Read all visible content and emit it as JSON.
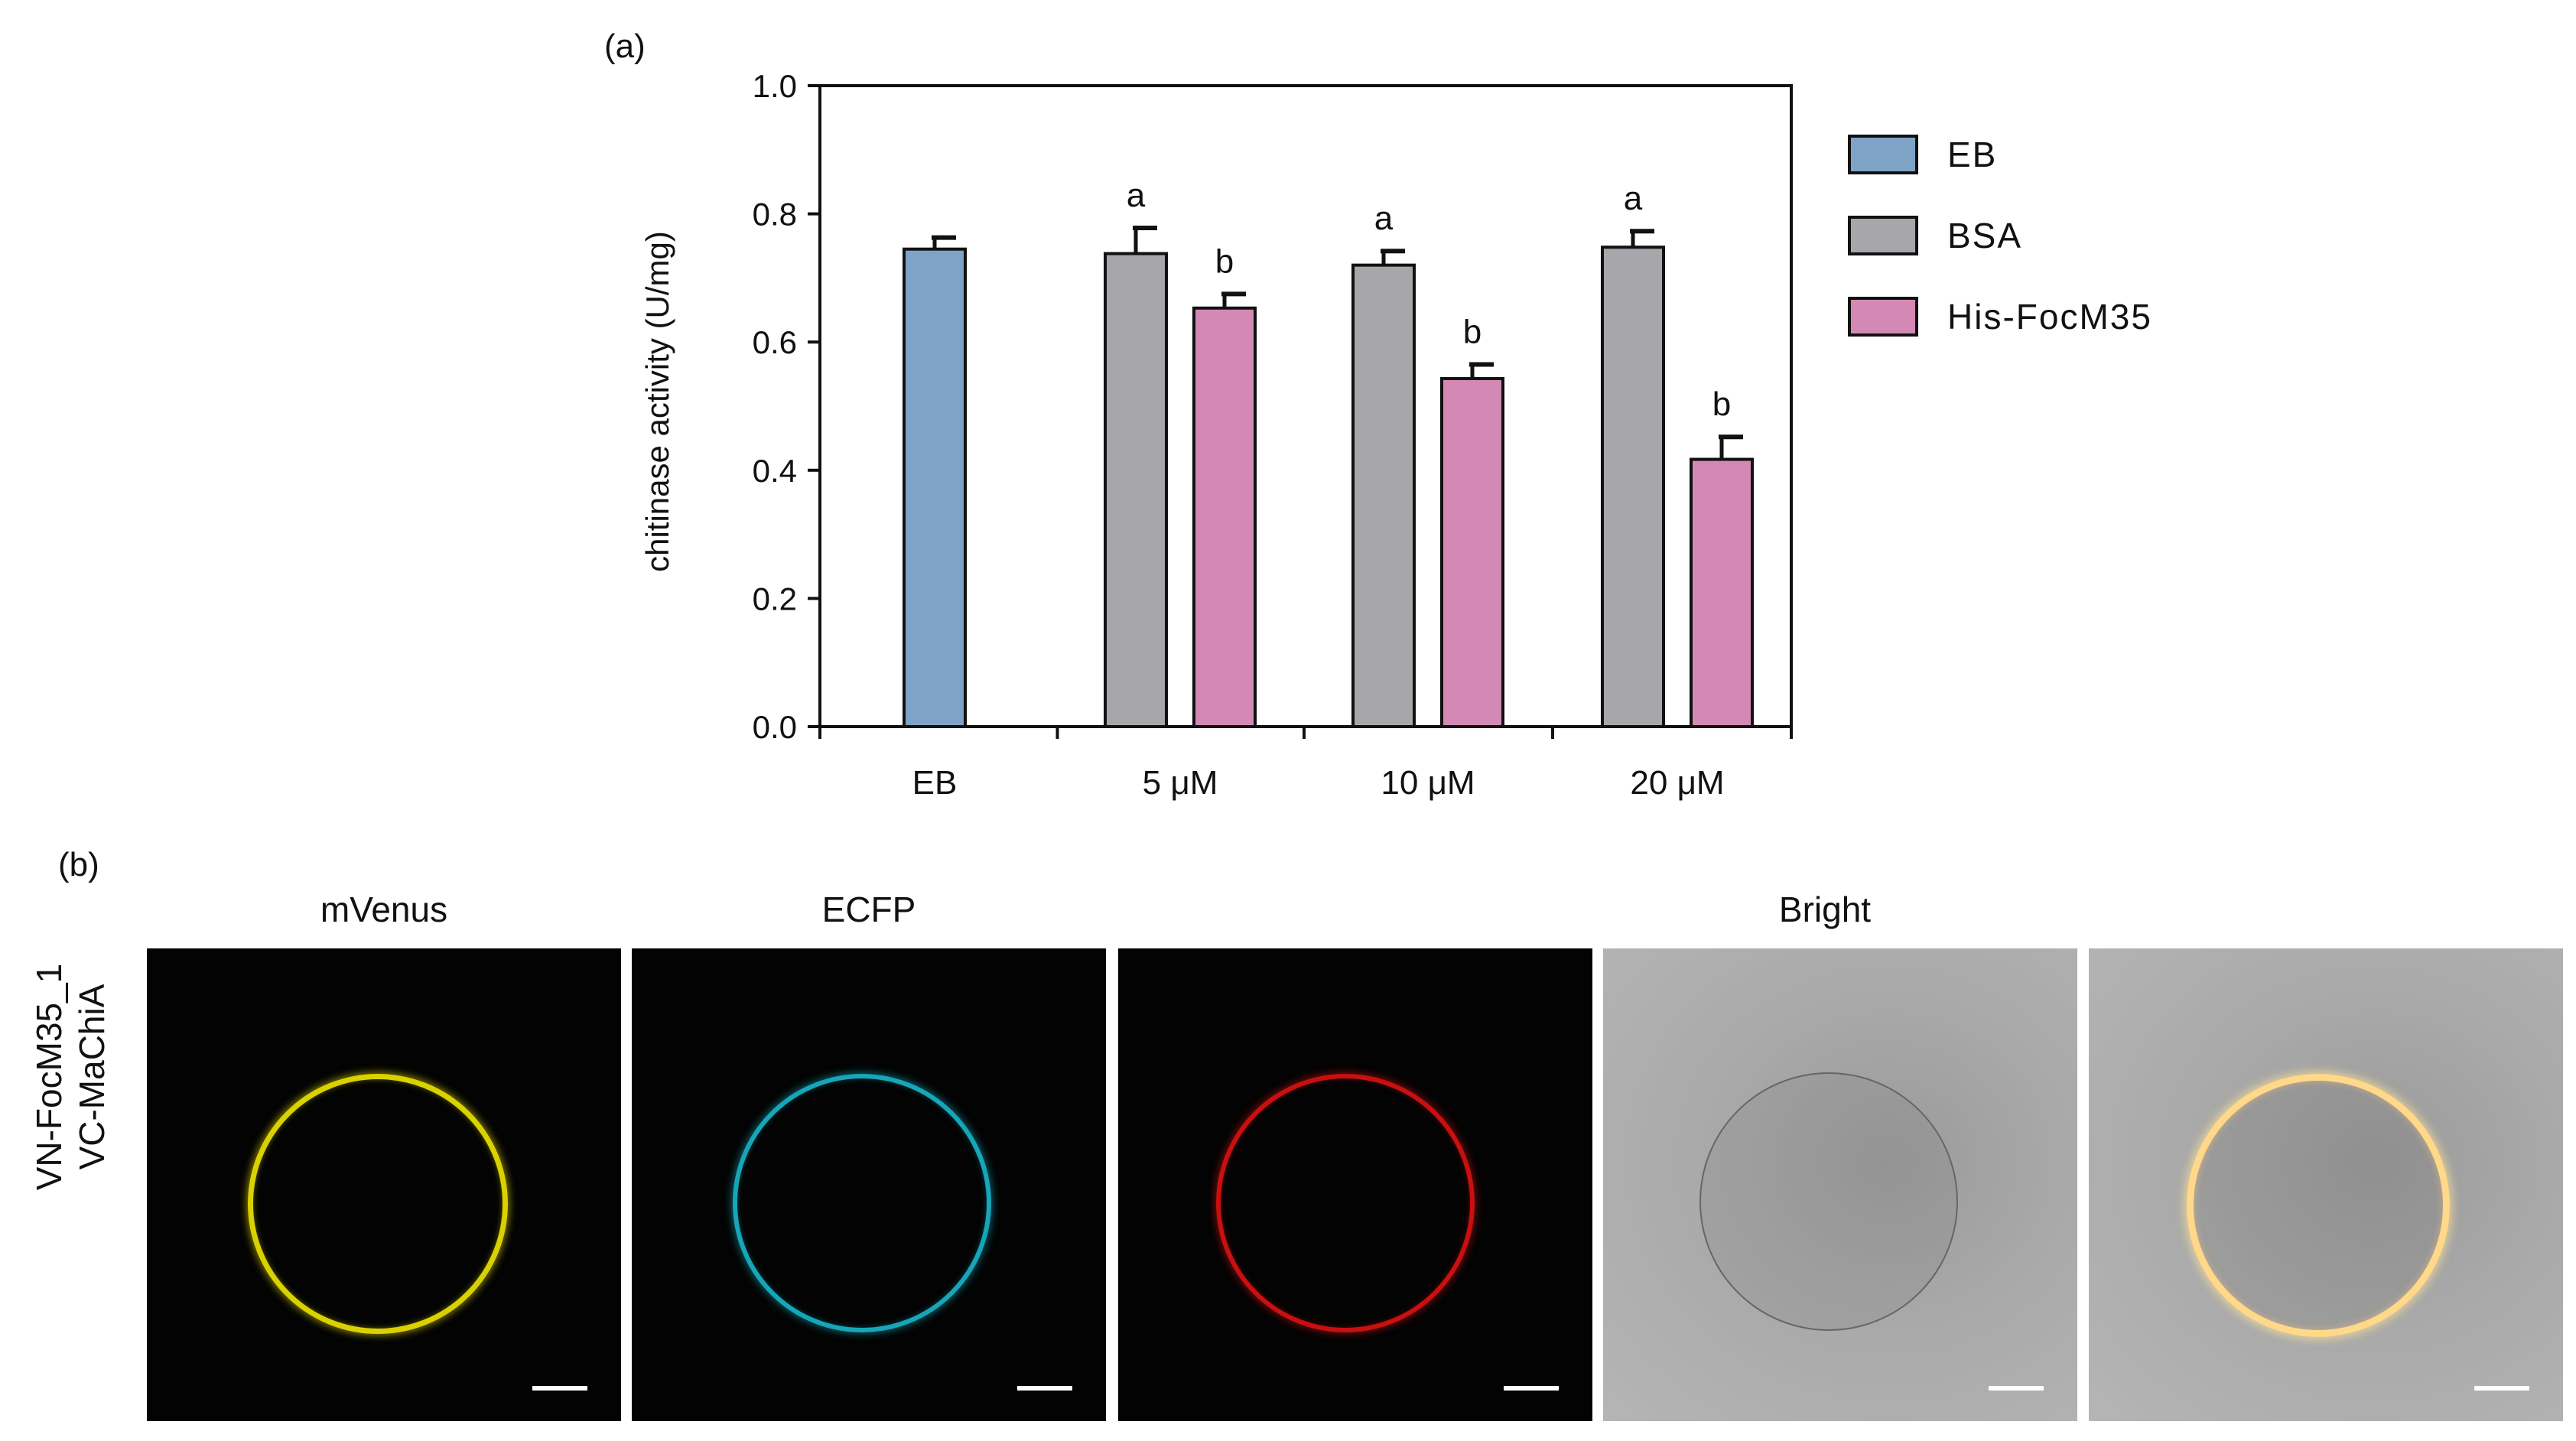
{
  "panel_a": {
    "label": "(a)"
  },
  "panel_b": {
    "label": "(b)",
    "row_label_line1": "VN-FocM35_1",
    "row_label_line2": "VC-MaChiA",
    "column_titles": [
      "mVenus",
      "ECFP",
      "Bright"
    ],
    "panels": [
      {
        "channel": "mVenus",
        "signal_color": "#d9d200"
      },
      {
        "channel": "ECFP",
        "signal_color": "#16a6b8"
      },
      {
        "channel": "red",
        "signal_color": "#c81010"
      },
      {
        "channel": "Bright",
        "signal_color": "#777777"
      },
      {
        "channel": "merge",
        "signal_color": "#ffd88a"
      }
    ]
  },
  "chart_data": {
    "type": "bar",
    "categories": [
      "EB",
      "5 μM",
      "10 μM",
      "20 μM"
    ],
    "ylabel": "chitinase activity (U/mg)",
    "ylim": [
      0,
      1.0
    ],
    "yticks": [
      "0.0",
      "0.2",
      "0.4",
      "0.6",
      "0.8",
      "1.0"
    ],
    "grid": false,
    "legend_position": "right",
    "series": [
      {
        "name": "EB",
        "color": "#7ea3c6",
        "values": [
          0.745,
          null,
          null,
          null
        ],
        "errors": [
          0.018,
          null,
          null,
          null
        ],
        "labels": [
          "",
          "",
          "",
          ""
        ]
      },
      {
        "name": "BSA",
        "color": "#a6a6ab",
        "values": [
          null,
          0.738,
          0.72,
          0.748
        ],
        "errors": [
          null,
          0.04,
          0.022,
          0.025
        ],
        "labels": [
          "",
          "a",
          "a",
          "a"
        ]
      },
      {
        "name": "His-FocM35",
        "color": "#d389b4",
        "values": [
          null,
          0.653,
          0.543,
          0.417
        ],
        "errors": [
          null,
          0.022,
          0.022,
          0.035
        ],
        "labels": [
          "",
          "b",
          "b",
          "b"
        ]
      }
    ]
  }
}
